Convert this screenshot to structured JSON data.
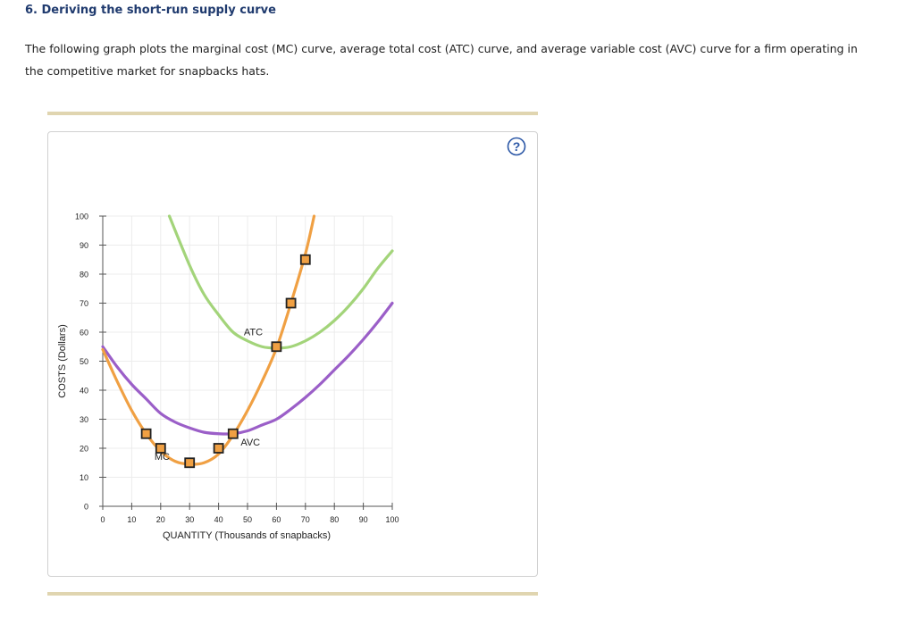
{
  "question": {
    "title": "6. Deriving the short-run supply curve",
    "line1": "The following graph plots the marginal cost (MC) curve, average total cost (ATC) curve, and average variable cost (AVC) curve for a firm operating in",
    "line2": "the competitive market for snapbacks hats."
  },
  "help": {
    "icon": "question-mark-icon",
    "color": "#2b57a6"
  },
  "colors": {
    "mc": "#f0a043",
    "atc": "#a3d47a",
    "avc": "#9b5fc8",
    "marker_fill": "#f0a043",
    "marker_stroke": "#222222",
    "grid": "#ececec"
  },
  "chart_data": {
    "type": "line",
    "xlabel": "QUANTITY (Thousands of snapbacks)",
    "ylabel": "COSTS (Dollars)",
    "xlim": [
      0,
      100
    ],
    "ylim": [
      0,
      100
    ],
    "xticks": [
      0,
      10,
      20,
      30,
      40,
      50,
      60,
      70,
      80,
      90,
      100
    ],
    "yticks": [
      0,
      10,
      20,
      30,
      40,
      50,
      60,
      70,
      80,
      90,
      100
    ],
    "grid": true,
    "series": [
      {
        "name": "ATC",
        "label_at": [
          52,
          59
        ],
        "points": [
          [
            23,
            100
          ],
          [
            30,
            83
          ],
          [
            35,
            73
          ],
          [
            40,
            66
          ],
          [
            45,
            60
          ],
          [
            50,
            57
          ],
          [
            55,
            55
          ],
          [
            60,
            54.5
          ],
          [
            65,
            55
          ],
          [
            70,
            57
          ],
          [
            75,
            60
          ],
          [
            80,
            64
          ],
          [
            85,
            69
          ],
          [
            90,
            75
          ],
          [
            95,
            82
          ],
          [
            100,
            88
          ]
        ]
      },
      {
        "name": "AVC",
        "label_at": [
          51,
          21
        ],
        "points": [
          [
            0,
            55
          ],
          [
            5,
            48
          ],
          [
            10,
            42
          ],
          [
            15,
            37
          ],
          [
            20,
            32
          ],
          [
            25,
            29
          ],
          [
            30,
            27
          ],
          [
            35,
            25.5
          ],
          [
            40,
            25
          ],
          [
            45,
            25
          ],
          [
            50,
            26
          ],
          [
            55,
            28
          ],
          [
            60,
            30
          ],
          [
            65,
            33.5
          ],
          [
            70,
            37.5
          ],
          [
            75,
            42
          ],
          [
            80,
            47
          ],
          [
            85,
            52
          ],
          [
            90,
            57.5
          ],
          [
            95,
            63.5
          ],
          [
            100,
            70
          ]
        ]
      },
      {
        "name": "MC",
        "label_at": [
          20.5,
          16
        ],
        "points": [
          [
            0,
            54
          ],
          [
            5,
            43
          ],
          [
            10,
            33
          ],
          [
            15,
            25
          ],
          [
            20,
            19
          ],
          [
            25,
            15.5
          ],
          [
            30,
            14.5
          ],
          [
            35,
            15
          ],
          [
            40,
            18
          ],
          [
            45,
            24.5
          ],
          [
            50,
            33
          ],
          [
            55,
            43
          ],
          [
            60,
            54.5
          ],
          [
            65,
            70
          ],
          [
            70,
            87
          ],
          [
            73,
            100
          ]
        ]
      }
    ],
    "markers": {
      "series": "MC",
      "points": [
        [
          15,
          25
        ],
        [
          20,
          20
        ],
        [
          30,
          15
        ],
        [
          40,
          20
        ],
        [
          45,
          25
        ],
        [
          60,
          55
        ],
        [
          65,
          70
        ],
        [
          70,
          85
        ]
      ]
    }
  }
}
